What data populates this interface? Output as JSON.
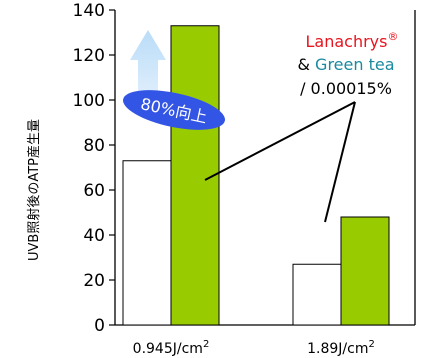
{
  "chart_data": {
    "type": "bar",
    "ylabel": "UVB照射後のATP産生量",
    "ylim": [
      0,
      140
    ],
    "y_ticks": [
      0,
      20,
      40,
      60,
      80,
      100,
      120,
      140
    ],
    "y_tick_labels": [
      "0",
      "20",
      "40",
      "60",
      "80",
      "100",
      "120",
      "140"
    ],
    "categories": [
      {
        "value": "0.945J/cm",
        "sup": "2"
      },
      {
        "value": "1.89J/cm",
        "sup": "2"
      }
    ],
    "series": [
      {
        "values": [
          73,
          27
        ],
        "color": "#ffffff"
      },
      {
        "values": [
          133,
          48
        ],
        "color": "#99cc00"
      }
    ],
    "legend": {
      "line1": "Lanachrys",
      "line1_mark": "®",
      "line1_color": "#e8141e",
      "line2_prefix": "& ",
      "line2_name": "Green tea",
      "line2_color": "#1a8aa0",
      "line3": "/ 0.00015%"
    },
    "annotation": {
      "text": "80%向上",
      "color": "#3355e6"
    },
    "colors": {
      "axis": "#000000",
      "outline": "#000000",
      "arrow": "#cfe6fb"
    }
  }
}
